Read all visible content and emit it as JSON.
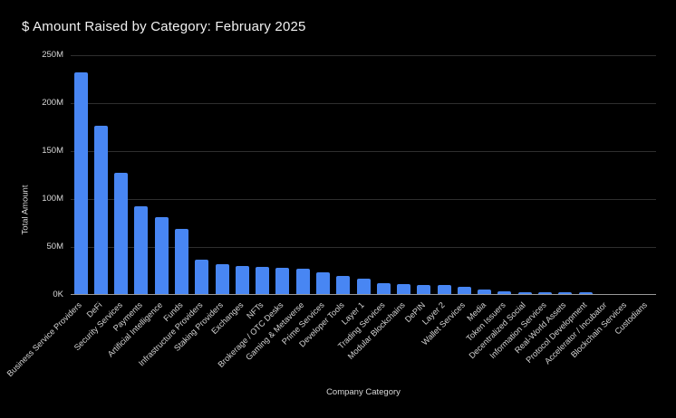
{
  "title": "$ Amount Raised by Category: February 2025",
  "colors": {
    "background": "#000000",
    "bar": "#4886f3",
    "gridline": "#2e2e2e",
    "axis_line": "#999999",
    "title_text": "#f2f2f2",
    "tick_text": "#d4d4d4"
  },
  "chart_data": {
    "type": "bar",
    "title": "$ Amount Raised by Category: February 2025",
    "xlabel": "Company Category",
    "ylabel": "Total Amount",
    "y_unit": "M = millions USD",
    "ylim_m": [
      0,
      250
    ],
    "grid": "horizontal",
    "legend": "none",
    "yticks": [
      {
        "value_m": 0,
        "label": "0K"
      },
      {
        "value_m": 50,
        "label": "50M"
      },
      {
        "value_m": 100,
        "label": "100M"
      },
      {
        "value_m": 150,
        "label": "150M"
      },
      {
        "value_m": 200,
        "label": "200M"
      },
      {
        "value_m": 250,
        "label": "250M"
      }
    ],
    "categories": [
      "Business Service Providers",
      "DeFi",
      "Security Services",
      "Payments",
      "Artificial Intelligence",
      "Funds",
      "Infrastructure Providers",
      "Staking Providers",
      "Exchanges",
      "NFTs",
      "Brokerage / OTC Desks",
      "Gaming & Metaverse",
      "Prime Services",
      "Developer Tools",
      "Layer 1",
      "Trading Services",
      "Modular Blockchains",
      "DePIN",
      "Layer 2",
      "Wallet Services",
      "Media",
      "Token Issuers",
      "Decentralized Social",
      "Information Services",
      "Real-World Assets",
      "Protocol Development",
      "Accelerator / Incubator",
      "Blockchain Services",
      "Custodians"
    ],
    "values_m": [
      232,
      176,
      127,
      92,
      81,
      69,
      37,
      32,
      30,
      29,
      28.5,
      27,
      24,
      20,
      17,
      12.5,
      11,
      10.5,
      10,
      8.5,
      6,
      3.5,
      3.2,
      3,
      2.8,
      2.5,
      1,
      0.6,
      0.3
    ]
  }
}
